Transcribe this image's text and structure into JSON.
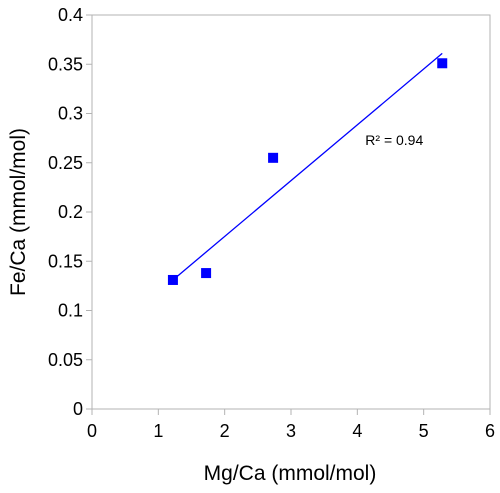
{
  "chart_data": {
    "type": "scatter",
    "title": "",
    "xlabel": "Mg/Ca (mmol/mol)",
    "ylabel": "Fe/Ca (mmol/mol)",
    "xlim": [
      0,
      6
    ],
    "ylim": [
      0,
      0.4
    ],
    "xticks": [
      0,
      1,
      2,
      3,
      4,
      5,
      6
    ],
    "yticks": [
      0,
      0.05,
      0.1,
      0.15,
      0.2,
      0.25,
      0.3,
      0.35,
      0.4
    ],
    "grid": false,
    "legend": "none",
    "series": [
      {
        "marker": "square",
        "color": "#0000ff",
        "points": [
          {
            "x": 1.22,
            "y": 0.131
          },
          {
            "x": 1.72,
            "y": 0.138
          },
          {
            "x": 2.73,
            "y": 0.255
          },
          {
            "x": 5.28,
            "y": 0.351
          }
        ]
      }
    ],
    "trendline": {
      "type": "linear",
      "color": "#0000ff",
      "x_start": 1.22,
      "y_start": 0.131,
      "x_end": 5.28,
      "y_end": 0.361
    },
    "annotations": [
      {
        "text": "R² = 0.94",
        "x": 4.12,
        "y": 0.268
      }
    ]
  }
}
